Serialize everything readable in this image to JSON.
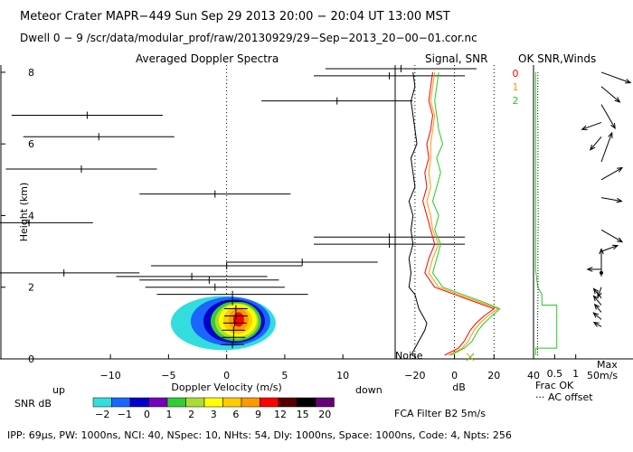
{
  "header": {
    "title": "Meteor Crater   MAPR−449   Sun Sep 29 2013 20:00 − 20:04 UT 13:00 MST",
    "dwell": "Dwell   0  −   9    /scr/data/modular_prof/raw/20130929/29−Sep−2013_20−00−01.cor.nc"
  },
  "panels": {
    "spectra_title": "Averaged Doppler Spectra",
    "signal_title": "Signal, SNR",
    "ok_title": "OK SNR,Winds"
  },
  "footer": {
    "params": "IPP:  69μs,   PW: 1000ns,   NCI:  40,   NSpec: 10,  NHts: 54,   Dly: 1000ns,   Space: 1000ns,   Code: 4,   Npts: 256",
    "fca": "FCA Filter B2   5m/s"
  },
  "labels": {
    "up": "up",
    "down": "down",
    "snr_db": "SNR dB",
    "noise": "Noise",
    "frac_ok": "Frac OK",
    "ac_offset": "··· AC offset",
    "max": "Max",
    "max_val": "50m/s"
  },
  "colors": {
    "beam0": "#ff0000",
    "beam1": "#ff9900",
    "beam2": "#22cc22",
    "colorbar": [
      "#33dddd",
      "#1a66ff",
      "#0000cc",
      "#7700bb",
      "#33cc33",
      "#aadd33",
      "#ffff00",
      "#ffcc00",
      "#ff9900",
      "#ff0000",
      "#550000",
      "#000000",
      "#660077"
    ]
  },
  "chart_data": [
    {
      "type": "heatmap",
      "title": "Averaged Doppler Spectra",
      "xlabel": "Doppler Velocity (m/s)",
      "ylabel": "Height (km)",
      "xlim": [
        -19.5,
        14.5
      ],
      "ylim": [
        0,
        8.2
      ],
      "xticks": [
        "−10",
        "−5",
        "0",
        "5",
        "10"
      ],
      "xtick_values": [
        -10,
        -5,
        0,
        5,
        10
      ],
      "yticks": [
        "0",
        "2",
        "4",
        "6",
        "8"
      ],
      "ytick_values": [
        0,
        2,
        4,
        6,
        8
      ],
      "colorbar_labels": [
        "−2",
        "−1",
        "0",
        "1",
        "2",
        "3",
        "6",
        "9",
        "12",
        "15",
        "20"
      ],
      "velocity_bars": [
        {
          "h": 8.1,
          "center": 15,
          "half": 6.5
        },
        {
          "h": 7.9,
          "center": 14,
          "half": 6.5
        },
        {
          "h": 7.2,
          "center": 9.5,
          "half": 6.5
        },
        {
          "h": 6.8,
          "center": -12,
          "half": 6.5
        },
        {
          "h": 6.2,
          "center": -11,
          "half": 6.5
        },
        {
          "h": 5.3,
          "center": -12.5,
          "half": 6.5
        },
        {
          "h": 4.6,
          "center": -1,
          "half": 6.5
        },
        {
          "h": 3.8,
          "center": -17,
          "half": 5.5
        },
        {
          "h": 3.4,
          "center": 14,
          "half": 6.5
        },
        {
          "h": 3.2,
          "center": 14,
          "half": 6.5
        },
        {
          "h": 2.7,
          "center": 6.5,
          "half": 6.5
        },
        {
          "h": 2.6,
          "center": 0,
          "half": 6.5
        },
        {
          "h": 2.4,
          "center": -14,
          "half": 6.5
        },
        {
          "h": 2.3,
          "center": -3,
          "half": 6.5
        },
        {
          "h": 2.2,
          "center": -1.5,
          "half": 6
        },
        {
          "h": 2.0,
          "center": -1,
          "half": 6
        },
        {
          "h": 1.8,
          "center": 0.5,
          "half": 6.5
        },
        {
          "h": 1.6,
          "center": 0.5,
          "half": 1
        },
        {
          "h": 1.4,
          "center": 0.8,
          "half": 1
        },
        {
          "h": 1.2,
          "center": 0.8,
          "half": 1
        },
        {
          "h": 1.0,
          "center": 0.7,
          "half": 1
        },
        {
          "h": 0.8,
          "center": 0.6,
          "half": 1
        },
        {
          "h": 0.6,
          "center": 0.6,
          "half": 1
        },
        {
          "h": 0.4,
          "center": 0.5,
          "half": 1
        }
      ]
    },
    {
      "type": "line",
      "title": "Signal, SNR",
      "xlabel": "dB",
      "xlim": [
        -30,
        40
      ],
      "ylim": [
        0,
        8.2
      ],
      "xticks": [
        "−20",
        "0",
        "20",
        "40"
      ],
      "xtick_values": [
        -20,
        0,
        20,
        40
      ],
      "legend": [
        "0",
        "1",
        "2"
      ],
      "series": [
        {
          "name": "noise",
          "h": [
            0.1,
            0.3,
            0.5,
            0.8,
            1.0,
            1.2,
            1.4,
            1.6,
            1.8,
            2.0,
            2.4,
            2.8,
            3.2,
            3.6,
            4.0,
            4.4,
            4.8,
            5.2,
            5.6,
            6.0,
            6.4,
            6.8,
            7.2,
            7.6,
            8.0
          ],
          "v": [
            -22,
            -20,
            -18,
            -15,
            -14,
            -16,
            -18,
            -19,
            -20,
            -23,
            -22,
            -23,
            -21,
            -22,
            -21,
            -23,
            -20,
            -21,
            -22,
            -19,
            -20,
            -21,
            -22,
            -20,
            -21
          ]
        },
        {
          "name": "0",
          "h": [
            0.1,
            0.3,
            0.5,
            0.8,
            1.0,
            1.2,
            1.4,
            1.6,
            1.8,
            2.0,
            2.4,
            2.8,
            3.2,
            3.6,
            4.0,
            4.4,
            4.8,
            5.2,
            5.6,
            6.0,
            6.4,
            6.8,
            7.2,
            7.6,
            8.0
          ],
          "v": [
            -5,
            2,
            5,
            8,
            11,
            15,
            20,
            10,
            0,
            -10,
            -15,
            -13,
            -10,
            -12,
            -14,
            -16,
            -14,
            -15,
            -13,
            -14,
            -12,
            -11,
            -13,
            -12,
            -11
          ]
        },
        {
          "name": "1",
          "h": [
            0.1,
            0.3,
            0.5,
            0.8,
            1.0,
            1.2,
            1.4,
            1.6,
            1.8,
            2.0,
            2.4,
            2.8,
            3.2,
            3.6,
            4.0,
            4.4,
            4.8,
            5.2,
            5.6,
            6.0,
            6.4,
            6.8,
            7.2,
            7.6,
            8.0
          ],
          "v": [
            -3,
            4,
            7,
            10,
            13,
            17,
            22,
            12,
            2,
            -8,
            -13,
            -11,
            -8,
            -11,
            -12,
            -14,
            -12,
            -13,
            -12,
            -12,
            -11,
            -10,
            -12,
            -11,
            -10
          ]
        },
        {
          "name": "2",
          "h": [
            0.1,
            0.3,
            0.5,
            0.8,
            1.0,
            1.2,
            1.4,
            1.6,
            1.8,
            2.0,
            2.4,
            2.8,
            3.2,
            3.6,
            4.0,
            4.4,
            4.8,
            5.2,
            5.6,
            6.0,
            6.4,
            6.8,
            7.2,
            7.6,
            8.0
          ],
          "v": [
            -2,
            5,
            9,
            12,
            15,
            19,
            23,
            14,
            4,
            -6,
            -11,
            -9,
            -7,
            -10,
            -8,
            -11,
            -9,
            -7,
            -9,
            -6,
            -8,
            -9,
            -10,
            -9,
            -8
          ]
        }
      ]
    },
    {
      "type": "line",
      "title": "OK SNR,Winds",
      "xlabel": "Frac OK",
      "xlim": [
        0,
        1.2
      ],
      "ylim": [
        0,
        8.2
      ],
      "xticks": [
        "0.5",
        "1"
      ],
      "xtick_values": [
        0.5,
        1
      ],
      "series": [
        {
          "name": "frac_ok",
          "h": [
            0.1,
            0.3,
            0.3,
            0.6,
            0.9,
            1.2,
            1.5,
            1.5,
            1.8,
            2.0,
            2.5,
            3.0,
            3.5,
            4.0,
            5.0,
            6.0,
            7.0,
            8.0
          ],
          "v": [
            0.05,
            0.05,
            0.55,
            0.55,
            0.55,
            0.55,
            0.55,
            0.2,
            0.2,
            0.1,
            0.05,
            0.05,
            0.05,
            0.05,
            0.05,
            0.05,
            0.05,
            0.05
          ]
        },
        {
          "name": "ac_offset",
          "h": [
            0.1,
            1.0,
            2.0,
            3.0,
            4.0,
            5.0,
            6.0,
            7.0,
            8.0
          ],
          "v": [
            0.02,
            0.03,
            0.05,
            0.04,
            0.06,
            0.04,
            0.05,
            0.03,
            0.04
          ]
        }
      ],
      "winds": [
        {
          "h": 8.0,
          "dir": 110,
          "speed": 0.9
        },
        {
          "h": 7.6,
          "dir": 130,
          "speed": 0.7
        },
        {
          "h": 7.1,
          "dir": 150,
          "speed": 0.8
        },
        {
          "h": 6.6,
          "dir": 250,
          "speed": 0.6
        },
        {
          "h": 6.2,
          "dir": 220,
          "speed": 0.5
        },
        {
          "h": 5.5,
          "dir": 20,
          "speed": 0.9
        },
        {
          "h": 5.0,
          "dir": 60,
          "speed": 0.7
        },
        {
          "h": 4.5,
          "dir": 100,
          "speed": 0.6
        },
        {
          "h": 3.6,
          "dir": 120,
          "speed": 0.7
        },
        {
          "h": 3.0,
          "dir": 70,
          "speed": 0.5
        },
        {
          "h": 2.5,
          "dir": 270,
          "speed": 0.4
        },
        {
          "h": 2.3,
          "dir": 0,
          "speed": 0.8
        },
        {
          "h": 2.0,
          "dir": 200,
          "speed": 0.3
        },
        {
          "h": 1.7,
          "dir": 320,
          "speed": 0.35
        },
        {
          "h": 1.5,
          "dir": 320,
          "speed": 0.35
        },
        {
          "h": 1.3,
          "dir": 320,
          "speed": 0.3
        },
        {
          "h": 1.1,
          "dir": 310,
          "speed": 0.3
        },
        {
          "h": 0.9,
          "dir": 300,
          "speed": 0.25
        }
      ]
    }
  ]
}
